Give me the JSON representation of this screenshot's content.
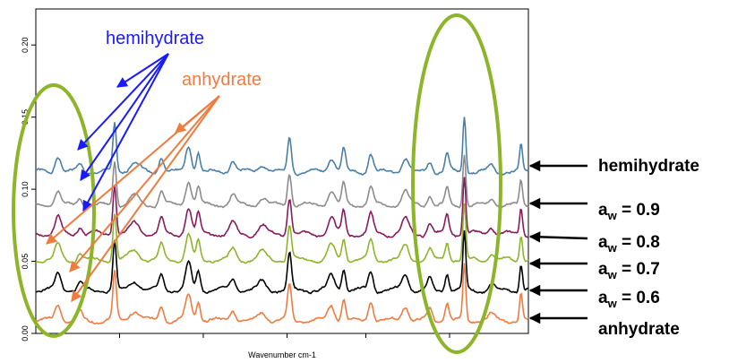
{
  "chart_data": {
    "type": "line",
    "title": "",
    "xlabel": "Wavenumber cm-1",
    "ylabel": "",
    "ylim": [
      0.0,
      0.225
    ],
    "yticks": [
      "0.00",
      "0.05",
      "0.10",
      "0.15",
      "0.20"
    ],
    "ytick_values": [
      0.0,
      0.05,
      0.1,
      0.15,
      0.2
    ],
    "grid": false,
    "peaks": [
      {
        "x": 0.045,
        "w": 0.006,
        "h": 1.0
      },
      {
        "x": 0.09,
        "w": 0.005,
        "h": 0.5
      },
      {
        "x": 0.16,
        "w": 0.0035,
        "h": 3.0
      },
      {
        "x": 0.2,
        "w": 0.01,
        "h": 0.6
      },
      {
        "x": 0.255,
        "w": 0.005,
        "h": 1.0
      },
      {
        "x": 0.31,
        "w": 0.006,
        "h": 1.6
      },
      {
        "x": 0.33,
        "w": 0.004,
        "h": 1.2
      },
      {
        "x": 0.4,
        "w": 0.006,
        "h": 0.7
      },
      {
        "x": 0.46,
        "w": 0.008,
        "h": 0.5
      },
      {
        "x": 0.515,
        "w": 0.004,
        "h": 2.2
      },
      {
        "x": 0.6,
        "w": 0.007,
        "h": 0.9
      },
      {
        "x": 0.625,
        "w": 0.004,
        "h": 1.4
      },
      {
        "x": 0.68,
        "w": 0.005,
        "h": 1.2
      },
      {
        "x": 0.75,
        "w": 0.007,
        "h": 0.9
      },
      {
        "x": 0.8,
        "w": 0.005,
        "h": 0.7
      },
      {
        "x": 0.835,
        "w": 0.004,
        "h": 1.1
      },
      {
        "x": 0.87,
        "w": 0.003,
        "h": 3.5
      },
      {
        "x": 0.925,
        "w": 0.006,
        "h": 0.4
      },
      {
        "x": 0.985,
        "w": 0.003,
        "h": 1.6
      }
    ],
    "series": [
      {
        "name": "hemihydrate",
        "color": "#4a7fa8",
        "offset": 0.112,
        "scale": 0.032,
        "seed": 1
      },
      {
        "name": "a_w = 0.9",
        "color": "#8c8c8c",
        "offset": 0.089,
        "scale": 0.03,
        "seed": 2
      },
      {
        "name": "a_w = 0.8",
        "color": "#8a1a5c",
        "offset": 0.069,
        "scale": 0.033,
        "seed": 3
      },
      {
        "name": "a_w = 0.7",
        "color": "#8db52a",
        "offset": 0.051,
        "scale": 0.031,
        "seed": 4
      },
      {
        "name": "a_w = 0.6",
        "color": "#000000",
        "offset": 0.03,
        "scale": 0.032,
        "seed": 5
      },
      {
        "name": "anhydrate",
        "color": "#f07b3f",
        "offset": 0.009,
        "scale": 0.032,
        "seed": 6
      }
    ]
  },
  "annotations": {
    "hemihydrate_text": "hemihydrate",
    "hemihydrate_color": "#1a1aff",
    "anhydrate_text": "anhydrate",
    "anhydrate_color": "#f07b3f",
    "ellipse_color": "#8db52a"
  },
  "right_labels": {
    "hemihydrate": "hemihydrate",
    "aw_prefix": "a",
    "aw_sub": "w",
    "aw_09": " = 0.9",
    "aw_08": " = 0.8",
    "aw_07": " = 0.7",
    "aw_06": " = 0.6",
    "anhydrate": "anhydrate"
  }
}
